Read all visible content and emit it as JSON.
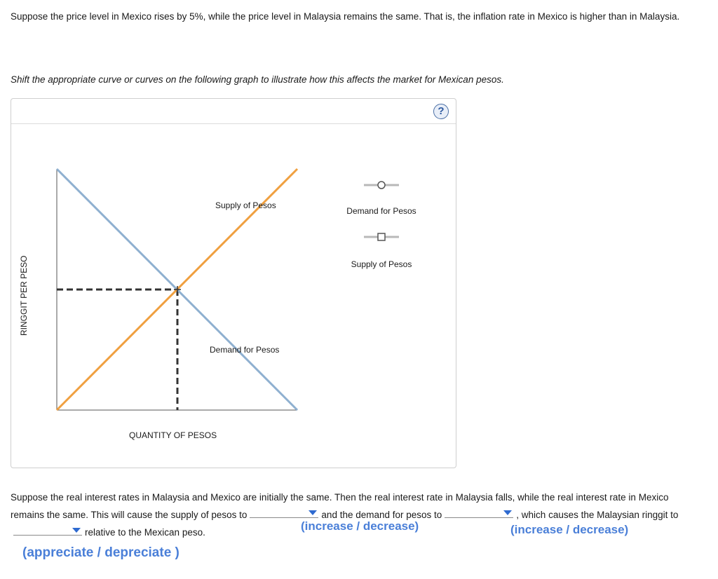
{
  "question1": "Suppose the price level in Mexico rises by 5%, while the price level in Malaysia remains the same. That is, the inflation rate in Mexico is higher than in Malaysia.",
  "instruction": "Shift the appropriate curve or curves on the following graph to illustrate how this affects the market for Mexican pesos.",
  "help_label": "?",
  "graph": {
    "y_axis_label": "RINGGIT PER PESO",
    "x_axis_label": "QUANTITY OF PESOS",
    "supply_label": "Supply of Pesos",
    "demand_label": "Demand for Pesos",
    "legend": {
      "demand": "Demand for Pesos",
      "supply": "Supply of Pesos"
    },
    "colors": {
      "supply": "#f0a040",
      "demand": "#8fb0d0",
      "dashed": "#333333"
    },
    "chart_data": {
      "type": "line",
      "series": [
        {
          "name": "Supply of Pesos",
          "x": [
            0,
            100
          ],
          "y": [
            0,
            100
          ]
        },
        {
          "name": "Demand for Pesos",
          "x": [
            0,
            100
          ],
          "y": [
            100,
            0
          ]
        }
      ],
      "equilibrium": {
        "x": 50,
        "y": 50
      }
    }
  },
  "question2": {
    "part1": "Suppose the real interest rates in Malaysia and Mexico are initially the same. Then the real interest rate in Malaysia falls, while the real interest rate in Mexico remains the same. This will cause the supply of pesos to",
    "part2": "and the demand for pesos to",
    "part3": ", which causes the Malaysian ringgit to",
    "part4": "relative to the Mexican peso.",
    "hint1": "(increase / decrease)",
    "hint2": "(increase / decrease)",
    "hint3": "(appreciate / depreciate )"
  }
}
